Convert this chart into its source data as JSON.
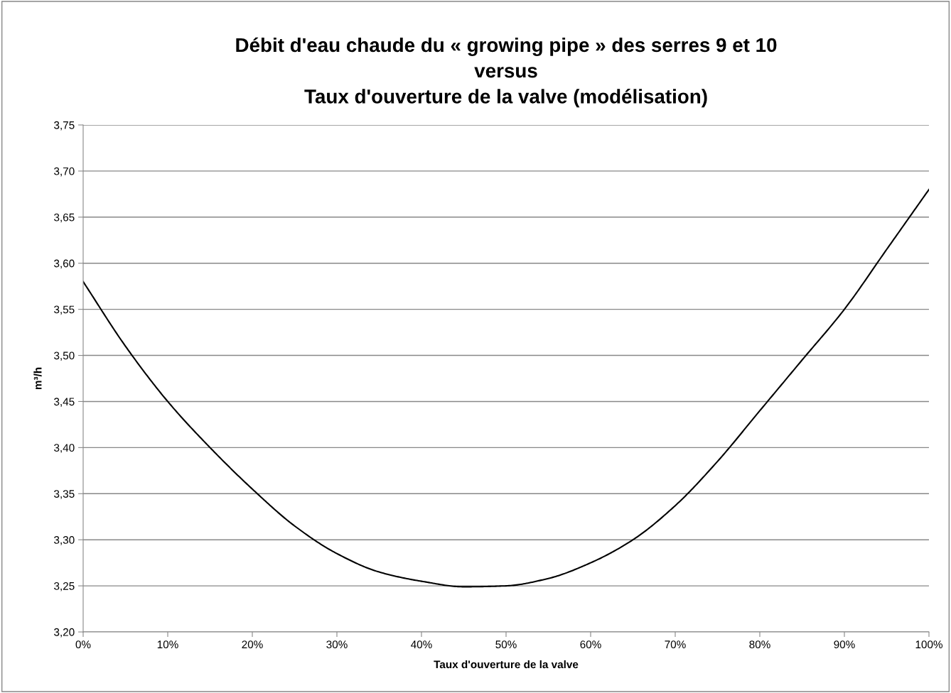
{
  "chart_data": {
    "type": "line",
    "title": "Débit d'eau chaude du « growing pipe » des serres 9 et 10\nversus\nTaux d'ouverture de la valve (modélisation)",
    "xlabel": "Taux d'ouverture de la valve",
    "ylabel": "m³/h",
    "x": [
      0,
      5,
      10,
      15,
      20,
      25,
      30,
      35,
      40,
      45,
      50,
      55,
      60,
      65,
      70,
      75,
      80,
      85,
      90,
      95,
      100
    ],
    "series": [
      {
        "color": "#000000",
        "values": [
          3.58,
          3.51,
          3.45,
          3.4,
          3.355,
          3.315,
          3.285,
          3.265,
          3.255,
          3.249,
          3.25,
          3.258,
          3.275,
          3.3,
          3.337,
          3.385,
          3.44,
          3.495,
          3.55,
          3.615,
          3.68
        ]
      }
    ],
    "xlim": [
      0,
      100
    ],
    "xticks": [
      {
        "value": 0,
        "label": "0%"
      },
      {
        "value": 10,
        "label": "10%"
      },
      {
        "value": 20,
        "label": "20%"
      },
      {
        "value": 30,
        "label": "30%"
      },
      {
        "value": 40,
        "label": "40%"
      },
      {
        "value": 50,
        "label": "50%"
      },
      {
        "value": 60,
        "label": "60%"
      },
      {
        "value": 70,
        "label": "70%"
      },
      {
        "value": 80,
        "label": "80%"
      },
      {
        "value": 90,
        "label": "90%"
      },
      {
        "value": 100,
        "label": "100%"
      }
    ],
    "ylim": [
      3.2,
      3.75
    ],
    "yticks": [
      {
        "value": 3.2,
        "label": "3,20"
      },
      {
        "value": 3.25,
        "label": "3,25"
      },
      {
        "value": 3.3,
        "label": "3,30"
      },
      {
        "value": 3.35,
        "label": "3,35"
      },
      {
        "value": 3.4,
        "label": "3,40"
      },
      {
        "value": 3.45,
        "label": "3,45"
      },
      {
        "value": 3.5,
        "label": "3,50"
      },
      {
        "value": 3.55,
        "label": "3,55"
      },
      {
        "value": 3.6,
        "label": "3,60"
      },
      {
        "value": 3.65,
        "label": "3,65"
      },
      {
        "value": 3.7,
        "label": "3,70"
      },
      {
        "value": 3.75,
        "label": "3,75"
      }
    ],
    "grid": "y",
    "marker": "none",
    "line_style": "solid"
  }
}
